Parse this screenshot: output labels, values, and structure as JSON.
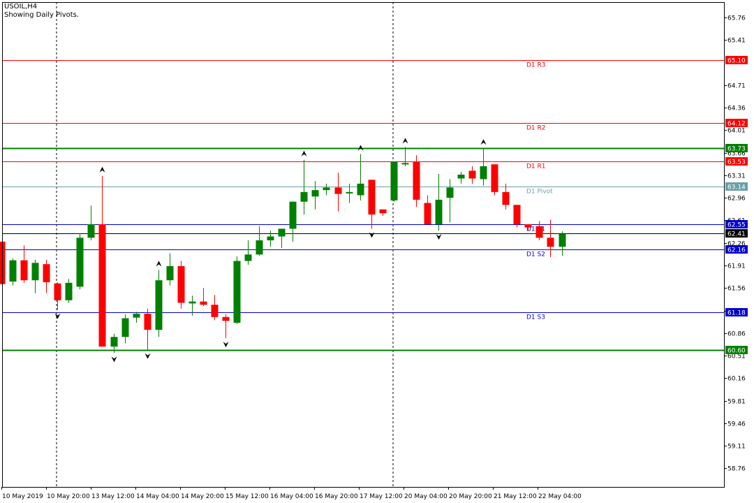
{
  "header": {
    "symbol": "USOIL,H4",
    "subtitle": "Showing Daily Pivots."
  },
  "colors": {
    "bull": "#008000",
    "bear": "#ff0000",
    "resistance": "#ff0000",
    "support": "#0000cc",
    "pivot": "#6a9fa8",
    "zone": "#008000",
    "current": "#000000",
    "fractal": "#000000",
    "grid_text": "#000000"
  },
  "chart_data": {
    "type": "candlestick",
    "timeframe": "H4",
    "y_ticks": [
      "65.76",
      "65.41",
      "64.71",
      "64.36",
      "64.01",
      "63.66",
      "63.31",
      "62.96",
      "62.61",
      "62.26",
      "61.91",
      "61.56",
      "61.21",
      "60.86",
      "60.51",
      "60.16",
      "59.81",
      "59.46",
      "59.11",
      "58.76"
    ],
    "x_labels": [
      "10 May 2019",
      "10 May 20:00",
      "13 May 12:00",
      "14 May 04:00",
      "14 May 20:00",
      "15 May 12:00",
      "16 May 04:00",
      "16 May 20:00",
      "17 May 12:00",
      "20 May 04:00",
      "20 May 20:00",
      "21 May 12:00",
      "22 May 04:00"
    ],
    "ylim": [
      58.5,
      66.0
    ],
    "levels": [
      {
        "label": "D1  R3",
        "value": 65.1,
        "price": "65.10",
        "kind": "resistance"
      },
      {
        "label": "D1  R2",
        "value": 64.12,
        "price": "64.12",
        "kind": "resistance"
      },
      {
        "label": "",
        "value": 63.73,
        "price": "63.73",
        "kind": "zone"
      },
      {
        "label": "D1  R1",
        "value": 63.53,
        "price": "63.53",
        "kind": "resistance"
      },
      {
        "label": "D1  Pivot",
        "value": 63.14,
        "price": "63.14",
        "kind": "pivot"
      },
      {
        "label": "D1  S1",
        "value": 62.55,
        "price": "62.55",
        "kind": "support"
      },
      {
        "label": "",
        "value": 62.41,
        "price": "62.41",
        "kind": "current"
      },
      {
        "label": "D1  S2",
        "value": 62.16,
        "price": "62.16",
        "kind": "support"
      },
      {
        "label": "D1  S3",
        "value": 61.18,
        "price": "61.18",
        "kind": "support"
      },
      {
        "label": "",
        "value": 60.6,
        "price": "60.60",
        "kind": "zone"
      }
    ],
    "candles": [
      {
        "o": 62.28,
        "h": 62.28,
        "l": 61.62,
        "c": 61.62
      },
      {
        "o": 61.66,
        "h": 62.02,
        "l": 61.6,
        "c": 61.99
      },
      {
        "o": 61.99,
        "h": 62.22,
        "l": 61.64,
        "c": 61.68
      },
      {
        "o": 61.68,
        "h": 62.0,
        "l": 61.48,
        "c": 61.95
      },
      {
        "o": 61.93,
        "h": 62.0,
        "l": 61.48,
        "c": 61.65
      },
      {
        "o": 61.63,
        "h": 61.65,
        "l": 61.22,
        "c": 61.37
      },
      {
        "o": 61.37,
        "h": 61.7,
        "l": 61.33,
        "c": 61.64
      },
      {
        "o": 61.58,
        "h": 62.41,
        "l": 61.54,
        "c": 62.34
      },
      {
        "o": 62.34,
        "h": 62.84,
        "l": 62.3,
        "c": 62.55
      },
      {
        "o": 62.55,
        "h": 63.3,
        "l": 60.65,
        "c": 60.65
      },
      {
        "o": 60.65,
        "h": 60.85,
        "l": 60.55,
        "c": 60.8
      },
      {
        "o": 60.8,
        "h": 61.15,
        "l": 60.7,
        "c": 61.09
      },
      {
        "o": 61.1,
        "h": 61.19,
        "l": 61.02,
        "c": 61.16
      },
      {
        "o": 61.16,
        "h": 61.24,
        "l": 60.6,
        "c": 60.91
      },
      {
        "o": 60.91,
        "h": 61.84,
        "l": 60.8,
        "c": 61.68
      },
      {
        "o": 61.68,
        "h": 62.1,
        "l": 61.6,
        "c": 61.9
      },
      {
        "o": 61.9,
        "h": 61.98,
        "l": 61.24,
        "c": 61.33
      },
      {
        "o": 61.32,
        "h": 61.44,
        "l": 61.13,
        "c": 61.35
      },
      {
        "o": 61.35,
        "h": 61.56,
        "l": 61.28,
        "c": 61.3
      },
      {
        "o": 61.3,
        "h": 61.45,
        "l": 61.06,
        "c": 61.11
      },
      {
        "o": 61.11,
        "h": 61.15,
        "l": 60.78,
        "c": 61.05
      },
      {
        "o": 61.02,
        "h": 62.05,
        "l": 61.0,
        "c": 61.98
      },
      {
        "o": 61.98,
        "h": 62.3,
        "l": 61.92,
        "c": 62.08
      },
      {
        "o": 62.08,
        "h": 62.52,
        "l": 62.06,
        "c": 62.3
      },
      {
        "o": 62.3,
        "h": 62.45,
        "l": 62.2,
        "c": 62.36
      },
      {
        "o": 62.36,
        "h": 62.48,
        "l": 62.18,
        "c": 62.48
      },
      {
        "o": 62.48,
        "h": 62.9,
        "l": 62.28,
        "c": 62.9
      },
      {
        "o": 62.9,
        "h": 63.55,
        "l": 62.7,
        "c": 63.05
      },
      {
        "o": 62.98,
        "h": 63.22,
        "l": 62.78,
        "c": 63.08
      },
      {
        "o": 63.08,
        "h": 63.18,
        "l": 63.0,
        "c": 63.12
      },
      {
        "o": 63.12,
        "h": 63.35,
        "l": 62.75,
        "c": 63.02
      },
      {
        "o": 63.04,
        "h": 63.18,
        "l": 62.88,
        "c": 63.05
      },
      {
        "o": 63.0,
        "h": 63.64,
        "l": 62.92,
        "c": 63.18
      },
      {
        "o": 63.24,
        "h": 63.24,
        "l": 62.48,
        "c": 62.7
      },
      {
        "o": 62.78,
        "h": 62.78,
        "l": 62.68,
        "c": 62.72
      },
      {
        "o": 62.92,
        "h": 63.52,
        "l": 62.9,
        "c": 63.52
      },
      {
        "o": 63.48,
        "h": 63.75,
        "l": 63.45,
        "c": 63.5
      },
      {
        "o": 63.52,
        "h": 63.62,
        "l": 62.82,
        "c": 62.93
      },
      {
        "o": 62.88,
        "h": 63.0,
        "l": 62.55,
        "c": 62.55
      },
      {
        "o": 62.55,
        "h": 63.33,
        "l": 62.45,
        "c": 62.93
      },
      {
        "o": 62.96,
        "h": 63.25,
        "l": 62.58,
        "c": 63.12
      },
      {
        "o": 63.26,
        "h": 63.36,
        "l": 63.18,
        "c": 63.32
      },
      {
        "o": 63.38,
        "h": 63.45,
        "l": 63.18,
        "c": 63.26
      },
      {
        "o": 63.25,
        "h": 63.73,
        "l": 63.15,
        "c": 63.45
      },
      {
        "o": 63.48,
        "h": 63.48,
        "l": 63.0,
        "c": 63.05
      },
      {
        "o": 63.05,
        "h": 63.18,
        "l": 62.78,
        "c": 62.85
      },
      {
        "o": 62.85,
        "h": 62.85,
        "l": 62.5,
        "c": 62.55
      },
      {
        "o": 62.55,
        "h": 62.55,
        "l": 62.45,
        "c": 62.5
      },
      {
        "o": 62.52,
        "h": 62.6,
        "l": 62.3,
        "c": 62.34
      },
      {
        "o": 62.34,
        "h": 62.62,
        "l": 62.04,
        "c": 62.2
      },
      {
        "o": 62.2,
        "h": 62.44,
        "l": 62.06,
        "c": 62.4
      }
    ],
    "fractals_up": [
      9,
      14,
      27,
      32,
      36,
      43
    ],
    "fractals_down": [
      5,
      10,
      13,
      20,
      33,
      39
    ]
  }
}
